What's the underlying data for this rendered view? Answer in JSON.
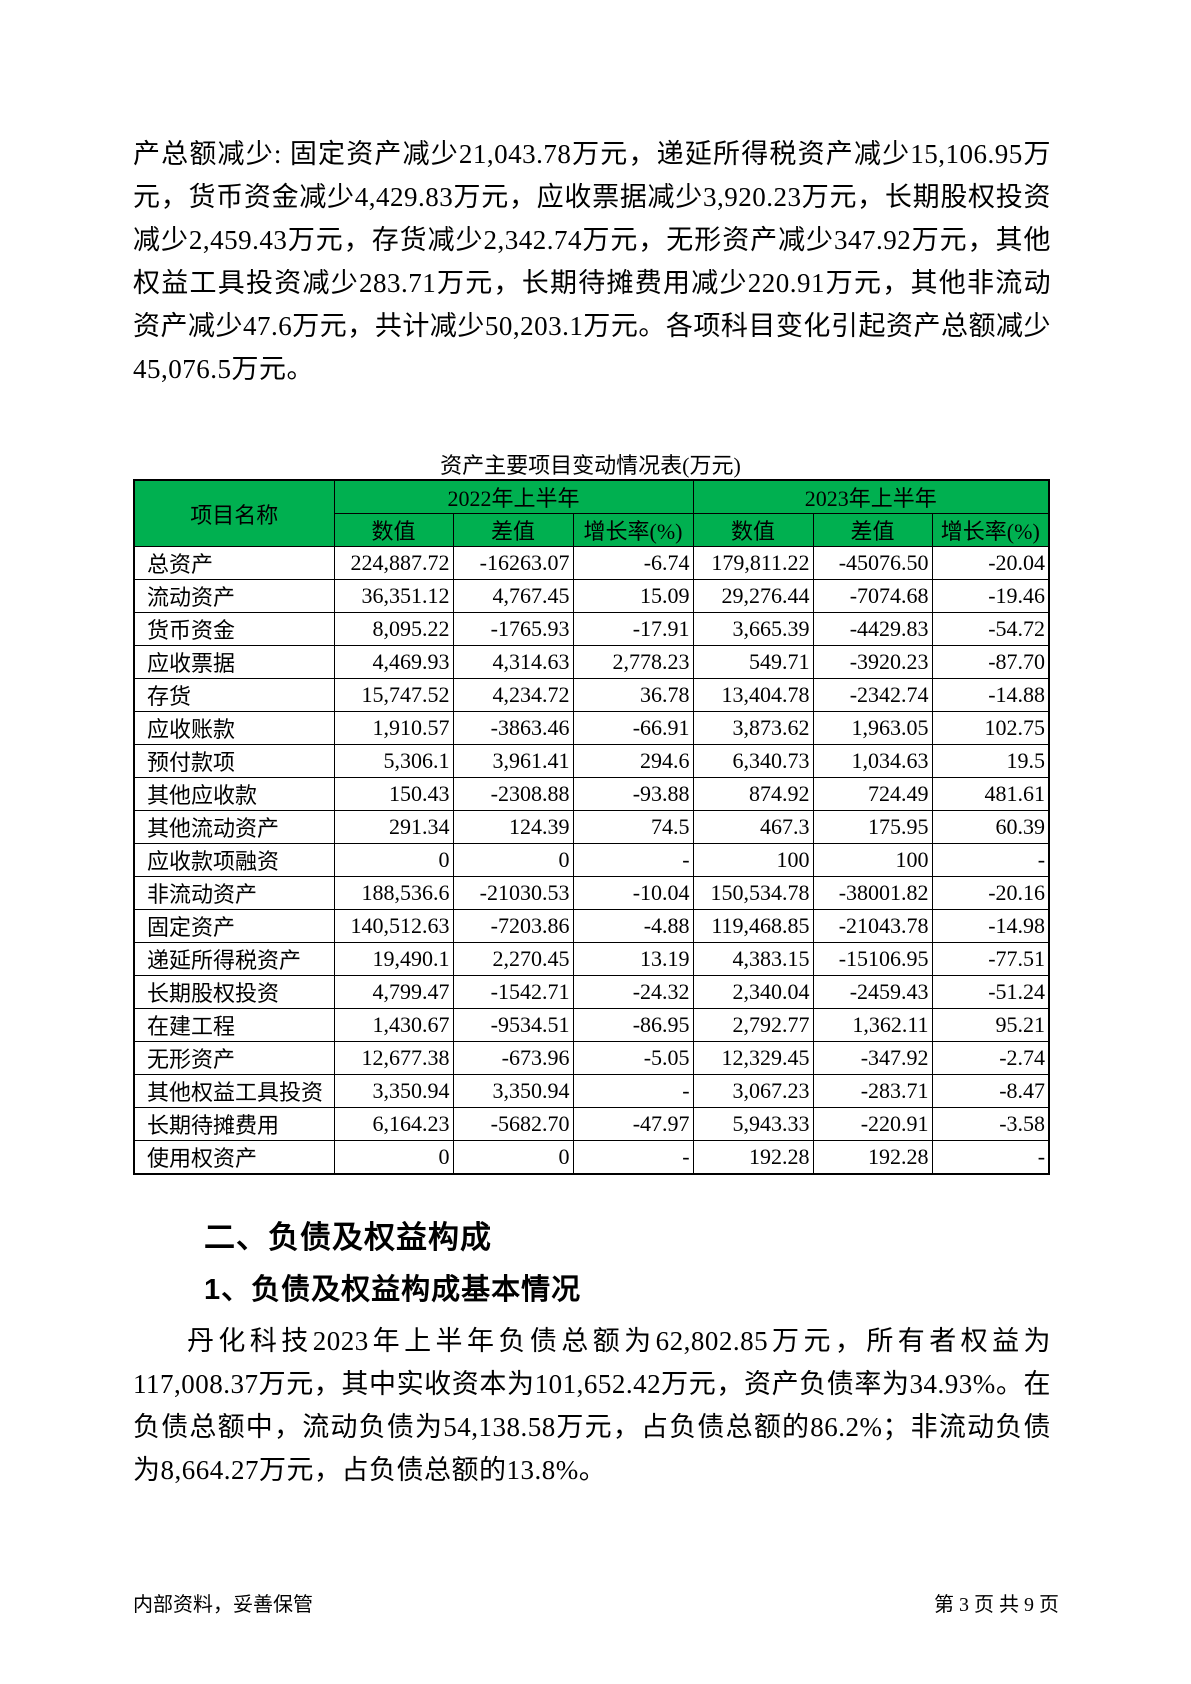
{
  "document": {
    "paragraph_top": "产总额减少: 固定资产减少21,043.78万元，递延所得税资产减少15,106.95万元，货币资金减少4,429.83万元，应收票据减少3,920.23万元，长期股权投资减少2,459.43万元，存货减少2,342.74万元，无形资产减少347.92万元，其他权益工具投资减少283.71万元，长期待摊费用减少220.91万元，其他非流动资产减少47.6万元，共计减少50,203.1万元。各项科目变化引起资产总额减少45,076.5万元。",
    "table": {
      "title": "资产主要项目变动情况表(万元)",
      "header": {
        "item_name": "项目名称",
        "group_2022": "2022年上半年",
        "group_2023": "2023年上半年",
        "sub": [
          "数值",
          "差值",
          "增长率(%)"
        ]
      },
      "rows": [
        [
          "总资产",
          "224,887.72",
          "-16263.07",
          "-6.74",
          "179,811.22",
          "-45076.50",
          "-20.04"
        ],
        [
          "流动资产",
          "36,351.12",
          "4,767.45",
          "15.09",
          "29,276.44",
          "-7074.68",
          "-19.46"
        ],
        [
          "货币资金",
          "8,095.22",
          "-1765.93",
          "-17.91",
          "3,665.39",
          "-4429.83",
          "-54.72"
        ],
        [
          "应收票据",
          "4,469.93",
          "4,314.63",
          "2,778.23",
          "549.71",
          "-3920.23",
          "-87.70"
        ],
        [
          "存货",
          "15,747.52",
          "4,234.72",
          "36.78",
          "13,404.78",
          "-2342.74",
          "-14.88"
        ],
        [
          "应收账款",
          "1,910.57",
          "-3863.46",
          "-66.91",
          "3,873.62",
          "1,963.05",
          "102.75"
        ],
        [
          "预付款项",
          "5,306.1",
          "3,961.41",
          "294.6",
          "6,340.73",
          "1,034.63",
          "19.5"
        ],
        [
          "其他应收款",
          "150.43",
          "-2308.88",
          "-93.88",
          "874.92",
          "724.49",
          "481.61"
        ],
        [
          "其他流动资产",
          "291.34",
          "124.39",
          "74.5",
          "467.3",
          "175.95",
          "60.39"
        ],
        [
          "应收款项融资",
          "0",
          "0",
          "-",
          "100",
          "100",
          "-"
        ],
        [
          "非流动资产",
          "188,536.6",
          "-21030.53",
          "-10.04",
          "150,534.78",
          "-38001.82",
          "-20.16"
        ],
        [
          "固定资产",
          "140,512.63",
          "-7203.86",
          "-4.88",
          "119,468.85",
          "-21043.78",
          "-14.98"
        ],
        [
          "递延所得税资产",
          "19,490.1",
          "2,270.45",
          "13.19",
          "4,383.15",
          "-15106.95",
          "-77.51"
        ],
        [
          "长期股权投资",
          "4,799.47",
          "-1542.71",
          "-24.32",
          "2,340.04",
          "-2459.43",
          "-51.24"
        ],
        [
          "在建工程",
          "1,430.67",
          "-9534.51",
          "-86.95",
          "2,792.77",
          "1,362.11",
          "95.21"
        ],
        [
          "无形资产",
          "12,677.38",
          "-673.96",
          "-5.05",
          "12,329.45",
          "-347.92",
          "-2.74"
        ],
        [
          "其他权益工具投资",
          "3,350.94",
          "3,350.94",
          "-",
          "3,067.23",
          "-283.71",
          "-8.47"
        ],
        [
          "长期待摊费用",
          "6,164.23",
          "-5682.70",
          "-47.97",
          "5,943.33",
          "-220.91",
          "-3.58"
        ],
        [
          "使用权资产",
          "0",
          "0",
          "-",
          "192.28",
          "192.28",
          "-"
        ]
      ]
    },
    "heading_section": "二、负债及权益构成",
    "heading_subsection": "1、负债及权益构成基本情况",
    "paragraph_bottom": "丹化科技2023年上半年负债总额为62,802.85万元，所有者权益为117,008.37万元，其中实收资本为101,652.42万元，资产负债率为34.93%。在负债总额中，流动负债为54,138.58万元，占负债总额的86.2%；非流动负债为8,664.27万元，占负债总额的13.8%。",
    "footer": {
      "left": "内部资料，妥善保管",
      "right": "第 3 页  共 9 页"
    }
  },
  "colors": {
    "table_header_bg": "#00B050",
    "table_border": "#000000"
  }
}
